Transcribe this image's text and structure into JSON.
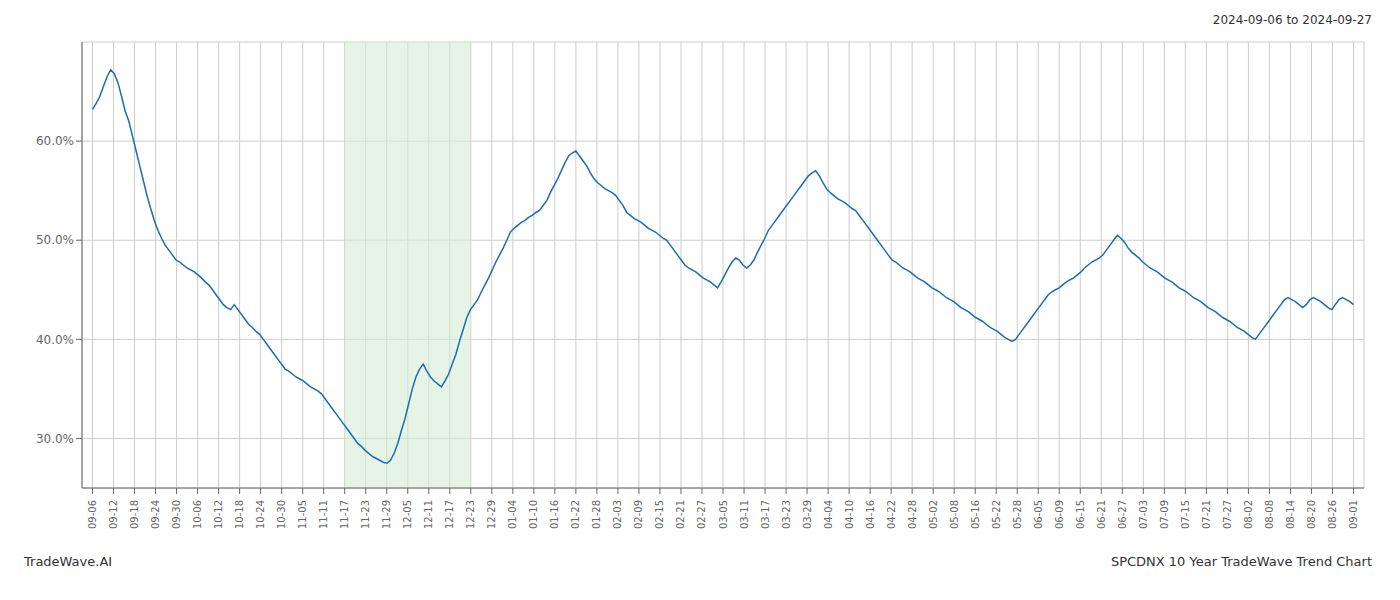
{
  "chart_data": {
    "type": "line",
    "annotations": [
      "2024-09-06 to 2024-09-27",
      "TradeWave.AI",
      "SPCDNX 10 Year TradeWave Trend Chart"
    ],
    "color": "#1a6db5",
    "grid": true,
    "xlim": [
      -2.8917,
      349.8917
    ],
    "xticks": [
      {
        "value": 0,
        "label": "09-06"
      },
      {
        "value": 5.7833,
        "label": "09-12"
      },
      {
        "value": 11.5667,
        "label": "09-18"
      },
      {
        "value": 17.35,
        "label": "09-24"
      },
      {
        "value": 23.1333,
        "label": "09-30"
      },
      {
        "value": 28.9167,
        "label": "10-06"
      },
      {
        "value": 34.7,
        "label": "10-12"
      },
      {
        "value": 40.4833,
        "label": "10-18"
      },
      {
        "value": 46.2667,
        "label": "10-24"
      },
      {
        "value": 52.05,
        "label": "10-30"
      },
      {
        "value": 57.8333,
        "label": "11-05"
      },
      {
        "value": 63.6167,
        "label": "11-11"
      },
      {
        "value": 69.4,
        "label": "11-17"
      },
      {
        "value": 75.1833,
        "label": "11-23"
      },
      {
        "value": 80.9667,
        "label": "11-29"
      },
      {
        "value": 86.75,
        "label": "12-05"
      },
      {
        "value": 92.5333,
        "label": "12-11"
      },
      {
        "value": 98.3167,
        "label": "12-17"
      },
      {
        "value": 104.1,
        "label": "12-23"
      },
      {
        "value": 109.8833,
        "label": "12-29"
      },
      {
        "value": 115.6667,
        "label": "01-04"
      },
      {
        "value": 121.45,
        "label": "01-10"
      },
      {
        "value": 127.2333,
        "label": "01-16"
      },
      {
        "value": 133.0167,
        "label": "01-22"
      },
      {
        "value": 138.8,
        "label": "01-28"
      },
      {
        "value": 144.5833,
        "label": "02-03"
      },
      {
        "value": 150.3667,
        "label": "02-09"
      },
      {
        "value": 156.15,
        "label": "02-15"
      },
      {
        "value": 161.9333,
        "label": "02-21"
      },
      {
        "value": 167.7167,
        "label": "02-27"
      },
      {
        "value": 173.5,
        "label": "03-05"
      },
      {
        "value": 179.2833,
        "label": "03-11"
      },
      {
        "value": 185.0667,
        "label": "03-17"
      },
      {
        "value": 190.85,
        "label": "03-23"
      },
      {
        "value": 196.6333,
        "label": "03-29"
      },
      {
        "value": 202.4167,
        "label": "04-04"
      },
      {
        "value": 208.2,
        "label": "04-10"
      },
      {
        "value": 213.9833,
        "label": "04-16"
      },
      {
        "value": 219.7667,
        "label": "04-22"
      },
      {
        "value": 225.55,
        "label": "04-28"
      },
      {
        "value": 231.3333,
        "label": "05-02"
      },
      {
        "value": 237.1167,
        "label": "05-08"
      },
      {
        "value": 242.9,
        "label": "05-16"
      },
      {
        "value": 248.6833,
        "label": "05-22"
      },
      {
        "value": 254.4667,
        "label": "05-28"
      },
      {
        "value": 260.25,
        "label": "06-05"
      },
      {
        "value": 266.0333,
        "label": "06-09"
      },
      {
        "value": 271.8167,
        "label": "06-15"
      },
      {
        "value": 277.6,
        "label": "06-21"
      },
      {
        "value": 283.3833,
        "label": "06-27"
      },
      {
        "value": 289.1667,
        "label": "07-03"
      },
      {
        "value": 294.95,
        "label": "07-09"
      },
      {
        "value": 300.7333,
        "label": "07-15"
      },
      {
        "value": 306.5167,
        "label": "07-21"
      },
      {
        "value": 312.3,
        "label": "07-27"
      },
      {
        "value": 318.0833,
        "label": "08-02"
      },
      {
        "value": 323.8667,
        "label": "08-08"
      },
      {
        "value": 329.65,
        "label": "08-14"
      },
      {
        "value": 335.4333,
        "label": "08-20"
      },
      {
        "value": 341.2167,
        "label": "08-26"
      },
      {
        "value": 347,
        "label": "09-01"
      }
    ],
    "ylim": [
      25,
      70
    ],
    "yticks": [
      {
        "value": 30,
        "label": "30.0%"
      },
      {
        "value": 40,
        "label": "40.0%"
      },
      {
        "value": 50,
        "label": "50.0%"
      },
      {
        "value": 60,
        "label": "60.0%"
      }
    ],
    "highlight": {
      "x": [
        69.4,
        104.1
      ],
      "color": "#d6ecd6"
    },
    "values": [
      63.2,
      63.8,
      64.5,
      65.5,
      66.5,
      67.2,
      66.8,
      65.9,
      64.5,
      63.0,
      62.0,
      60.5,
      59.0,
      57.5,
      56.0,
      54.5,
      53.2,
      52.0,
      51.0,
      50.2,
      49.5,
      49.0,
      48.5,
      48.0,
      47.8,
      47.5,
      47.2,
      47.0,
      46.8,
      46.5,
      46.2,
      45.8,
      45.5,
      45.0,
      44.5,
      44.0,
      43.5,
      43.2,
      43.0,
      43.5,
      43.0,
      42.5,
      42.0,
      41.5,
      41.2,
      40.8,
      40.5,
      40.0,
      39.5,
      39.0,
      38.5,
      38.0,
      37.5,
      37.0,
      36.8,
      36.5,
      36.2,
      36.0,
      35.8,
      35.5,
      35.2,
      35.0,
      34.8,
      34.5,
      34.0,
      33.5,
      33.0,
      32.5,
      32.0,
      31.5,
      31.0,
      30.5,
      30.0,
      29.5,
      29.2,
      28.8,
      28.5,
      28.2,
      28.0,
      27.8,
      27.6,
      27.5,
      27.8,
      28.5,
      29.5,
      30.8,
      32.0,
      33.5,
      35.0,
      36.2,
      37.0,
      37.5,
      36.8,
      36.2,
      35.8,
      35.5,
      35.2,
      35.8,
      36.5,
      37.5,
      38.5,
      39.8,
      41.0,
      42.2,
      43.0,
      43.5,
      44.0,
      44.8,
      45.5,
      46.2,
      47.0,
      47.8,
      48.5,
      49.2,
      50.0,
      50.8,
      51.2,
      51.5,
      51.8,
      52.0,
      52.3,
      52.5,
      52.8,
      53.0,
      53.5,
      54.0,
      54.8,
      55.5,
      56.2,
      57.0,
      57.8,
      58.5,
      58.8,
      59.0,
      58.5,
      58.0,
      57.5,
      56.8,
      56.2,
      55.8,
      55.5,
      55.2,
      55.0,
      54.8,
      54.5,
      54.0,
      53.5,
      52.8,
      52.5,
      52.2,
      52.0,
      51.8,
      51.5,
      51.2,
      51.0,
      50.8,
      50.5,
      50.2,
      50.0,
      49.5,
      49.0,
      48.5,
      48.0,
      47.5,
      47.2,
      47.0,
      46.8,
      46.5,
      46.2,
      46.0,
      45.8,
      45.5,
      45.2,
      45.8,
      46.5,
      47.2,
      47.8,
      48.2,
      48.0,
      47.5,
      47.2,
      47.5,
      48.0,
      48.8,
      49.5,
      50.2,
      51.0,
      51.5,
      52.0,
      52.5,
      53.0,
      53.5,
      54.0,
      54.5,
      55.0,
      55.5,
      56.0,
      56.5,
      56.8,
      57.0,
      56.5,
      55.8,
      55.2,
      54.8,
      54.5,
      54.2,
      54.0,
      53.8,
      53.5,
      53.2,
      53.0,
      52.5,
      52.0,
      51.5,
      51.0,
      50.5,
      50.0,
      49.5,
      49.0,
      48.5,
      48.0,
      47.8,
      47.5,
      47.2,
      47.0,
      46.8,
      46.5,
      46.2,
      46.0,
      45.8,
      45.5,
      45.2,
      45.0,
      44.8,
      44.5,
      44.2,
      44.0,
      43.8,
      43.5,
      43.2,
      43.0,
      42.8,
      42.5,
      42.2,
      42.0,
      41.8,
      41.5,
      41.2,
      41.0,
      40.8,
      40.5,
      40.2,
      40.0,
      39.8,
      40.0,
      40.5,
      41.0,
      41.5,
      42.0,
      42.5,
      43.0,
      43.5,
      44.0,
      44.5,
      44.8,
      45.0,
      45.2,
      45.5,
      45.8,
      46.0,
      46.2,
      46.5,
      46.8,
      47.2,
      47.5,
      47.8,
      48.0,
      48.2,
      48.5,
      49.0,
      49.5,
      50.0,
      50.5,
      50.2,
      49.8,
      49.2,
      48.8,
      48.5,
      48.2,
      47.8,
      47.5,
      47.2,
      47.0,
      46.8,
      46.5,
      46.2,
      46.0,
      45.8,
      45.5,
      45.2,
      45.0,
      44.8,
      44.5,
      44.2,
      44.0,
      43.8,
      43.5,
      43.2,
      43.0,
      42.8,
      42.5,
      42.2,
      42.0,
      41.8,
      41.5,
      41.2,
      41.0,
      40.8,
      40.5,
      40.2,
      40.0,
      40.5,
      41.0,
      41.5,
      42.0,
      42.5,
      43.0,
      43.5,
      44.0,
      44.2,
      44.0,
      43.8,
      43.5,
      43.2,
      43.5,
      44.0,
      44.2,
      44.0,
      43.8,
      43.5,
      43.2,
      43.0,
      43.5,
      44.0,
      44.2,
      44.0,
      43.8,
      43.5
    ]
  }
}
